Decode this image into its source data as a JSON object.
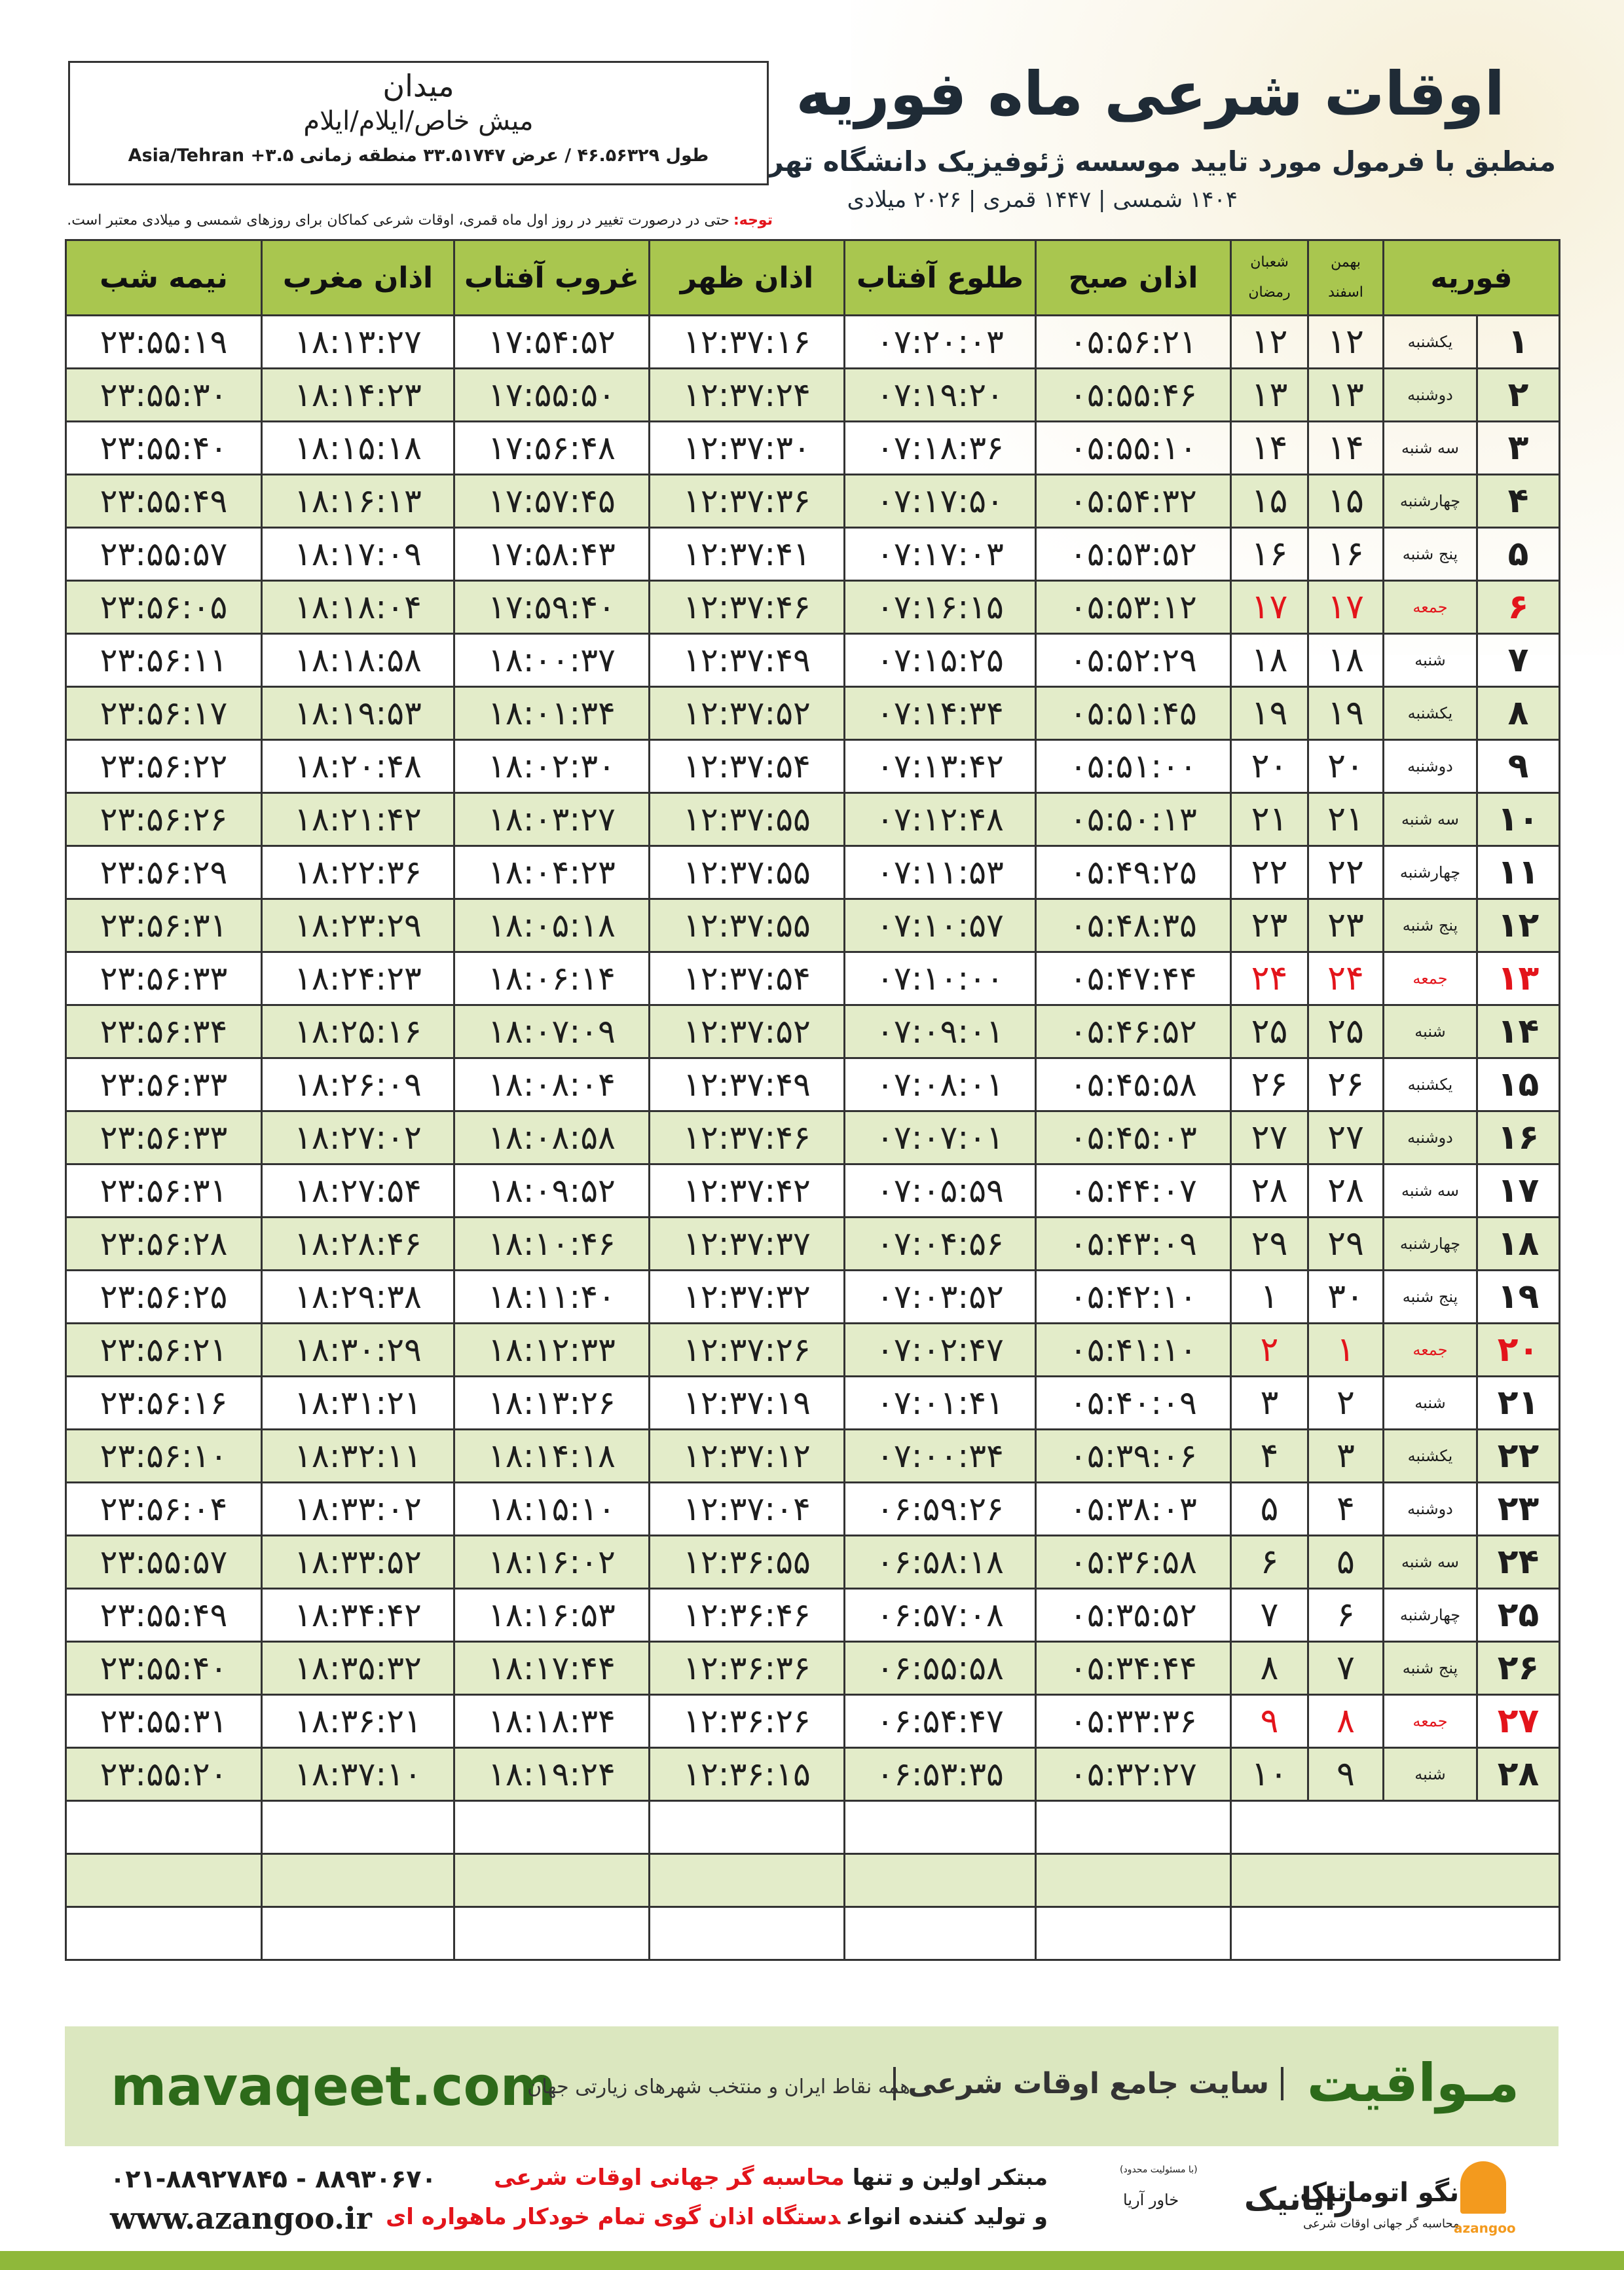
{
  "header": {
    "title": "اوقات شرعی ماه فوریه",
    "subtitle": "منطبق با فرمول مورد تایید موسسه ژئوفیزیک دانشگاه تهران",
    "dates": "۱۴۰۴ شمسی | ۱۴۴۷ قمری | ۲۰۲۶ میلادی",
    "city": "میدان",
    "location": "میش خاص/ایلام/ایلام",
    "coords": "طول ۴۶.۵۶۳۲۹ / عرض ۳۳.۵۱۷۴۷ منطقه زمانی ۳.۵+ Asia/Tehran"
  },
  "note": {
    "label": "توجه:",
    "text": "حتی در درصورت تغییر در روز اول ماه قمری، اوقات شرعی کماکان برای روزهای شمسی و میلادی معتبر است."
  },
  "table": {
    "holiday_color": "#e3141b",
    "columns": {
      "gregorian": "فوریه",
      "solar": [
        "بهمن",
        "اسفند"
      ],
      "lunar": [
        "شعبان",
        "رمضان"
      ],
      "times": [
        "اذان صبح",
        "طلوع آفتاب",
        "اذان ظهر",
        "غروب آفتاب",
        "اذان مغرب",
        "نیمه شب"
      ]
    },
    "rows": [
      {
        "cells": [
          "۱",
          "یکشنبه",
          "۱۲",
          "۱۲",
          "۰۵:۵۶:۲۱",
          "۰۷:۲۰:۰۳",
          "۱۲:۳۷:۱۶",
          "۱۷:۵۴:۵۲",
          "۱۸:۱۳:۲۷",
          "۲۳:۵۵:۱۹"
        ]
      },
      {
        "cells": [
          "۲",
          "دوشنبه",
          "۱۳",
          "۱۳",
          "۰۵:۵۵:۴۶",
          "۰۷:۱۹:۲۰",
          "۱۲:۳۷:۲۴",
          "۱۷:۵۵:۵۰",
          "۱۸:۱۴:۲۳",
          "۲۳:۵۵:۳۰"
        ]
      },
      {
        "cells": [
          "۳",
          "سه شنبه",
          "۱۴",
          "۱۴",
          "۰۵:۵۵:۱۰",
          "۰۷:۱۸:۳۶",
          "۱۲:۳۷:۳۰",
          "۱۷:۵۶:۴۸",
          "۱۸:۱۵:۱۸",
          "۲۳:۵۵:۴۰"
        ]
      },
      {
        "cells": [
          "۴",
          "چهارشنبه",
          "۱۵",
          "۱۵",
          "۰۵:۵۴:۳۲",
          "۰۷:۱۷:۵۰",
          "۱۲:۳۷:۳۶",
          "۱۷:۵۷:۴۵",
          "۱۸:۱۶:۱۳",
          "۲۳:۵۵:۴۹"
        ]
      },
      {
        "cells": [
          "۵",
          "پنج شنبه",
          "۱۶",
          "۱۶",
          "۰۵:۵۳:۵۲",
          "۰۷:۱۷:۰۳",
          "۱۲:۳۷:۴۱",
          "۱۷:۵۸:۴۳",
          "۱۸:۱۷:۰۹",
          "۲۳:۵۵:۵۷"
        ]
      },
      {
        "cells": [
          "۶",
          "جمعه",
          "۱۷",
          "۱۷",
          "۰۵:۵۳:۱۲",
          "۰۷:۱۶:۱۵",
          "۱۲:۳۷:۴۶",
          "۱۷:۵۹:۴۰",
          "۱۸:۱۸:۰۴",
          "۲۳:۵۶:۰۵"
        ],
        "holiday": true
      },
      {
        "cells": [
          "۷",
          "شنبه",
          "۱۸",
          "۱۸",
          "۰۵:۵۲:۲۹",
          "۰۷:۱۵:۲۵",
          "۱۲:۳۷:۴۹",
          "۱۸:۰۰:۳۷",
          "۱۸:۱۸:۵۸",
          "۲۳:۵۶:۱۱"
        ]
      },
      {
        "cells": [
          "۸",
          "یکشنبه",
          "۱۹",
          "۱۹",
          "۰۵:۵۱:۴۵",
          "۰۷:۱۴:۳۴",
          "۱۲:۳۷:۵۲",
          "۱۸:۰۱:۳۴",
          "۱۸:۱۹:۵۳",
          "۲۳:۵۶:۱۷"
        ]
      },
      {
        "cells": [
          "۹",
          "دوشنبه",
          "۲۰",
          "۲۰",
          "۰۵:۵۱:۰۰",
          "۰۷:۱۳:۴۲",
          "۱۲:۳۷:۵۴",
          "۱۸:۰۲:۳۰",
          "۱۸:۲۰:۴۸",
          "۲۳:۵۶:۲۲"
        ]
      },
      {
        "cells": [
          "۱۰",
          "سه شنبه",
          "۲۱",
          "۲۱",
          "۰۵:۵۰:۱۳",
          "۰۷:۱۲:۴۸",
          "۱۲:۳۷:۵۵",
          "۱۸:۰۳:۲۷",
          "۱۸:۲۱:۴۲",
          "۲۳:۵۶:۲۶"
        ]
      },
      {
        "cells": [
          "۱۱",
          "چهارشنبه",
          "۲۲",
          "۲۲",
          "۰۵:۴۹:۲۵",
          "۰۷:۱۱:۵۳",
          "۱۲:۳۷:۵۵",
          "۱۸:۰۴:۲۳",
          "۱۸:۲۲:۳۶",
          "۲۳:۵۶:۲۹"
        ]
      },
      {
        "cells": [
          "۱۲",
          "پنج شنبه",
          "۲۳",
          "۲۳",
          "۰۵:۴۸:۳۵",
          "۰۷:۱۰:۵۷",
          "۱۲:۳۷:۵۵",
          "۱۸:۰۵:۱۸",
          "۱۸:۲۳:۲۹",
          "۲۳:۵۶:۳۱"
        ]
      },
      {
        "cells": [
          "۱۳",
          "جمعه",
          "۲۴",
          "۲۴",
          "۰۵:۴۷:۴۴",
          "۰۷:۱۰:۰۰",
          "۱۲:۳۷:۵۴",
          "۱۸:۰۶:۱۴",
          "۱۸:۲۴:۲۳",
          "۲۳:۵۶:۳۳"
        ],
        "holiday": true
      },
      {
        "cells": [
          "۱۴",
          "شنبه",
          "۲۵",
          "۲۵",
          "۰۵:۴۶:۵۲",
          "۰۷:۰۹:۰۱",
          "۱۲:۳۷:۵۲",
          "۱۸:۰۷:۰۹",
          "۱۸:۲۵:۱۶",
          "۲۳:۵۶:۳۴"
        ]
      },
      {
        "cells": [
          "۱۵",
          "یکشنبه",
          "۲۶",
          "۲۶",
          "۰۵:۴۵:۵۸",
          "۰۷:۰۸:۰۱",
          "۱۲:۳۷:۴۹",
          "۱۸:۰۸:۰۴",
          "۱۸:۲۶:۰۹",
          "۲۳:۵۶:۳۳"
        ]
      },
      {
        "cells": [
          "۱۶",
          "دوشنبه",
          "۲۷",
          "۲۷",
          "۰۵:۴۵:۰۳",
          "۰۷:۰۷:۰۱",
          "۱۲:۳۷:۴۶",
          "۱۸:۰۸:۵۸",
          "۱۸:۲۷:۰۲",
          "۲۳:۵۶:۳۳"
        ]
      },
      {
        "cells": [
          "۱۷",
          "سه شنبه",
          "۲۸",
          "۲۸",
          "۰۵:۴۴:۰۷",
          "۰۷:۰۵:۵۹",
          "۱۲:۳۷:۴۲",
          "۱۸:۰۹:۵۲",
          "۱۸:۲۷:۵۴",
          "۲۳:۵۶:۳۱"
        ]
      },
      {
        "cells": [
          "۱۸",
          "چهارشنبه",
          "۲۹",
          "۲۹",
          "۰۵:۴۳:۰۹",
          "۰۷:۰۴:۵۶",
          "۱۲:۳۷:۳۷",
          "۱۸:۱۰:۴۶",
          "۱۸:۲۸:۴۶",
          "۲۳:۵۶:۲۸"
        ]
      },
      {
        "cells": [
          "۱۹",
          "پنج شنبه",
          "۳۰",
          "۱",
          "۰۵:۴۲:۱۰",
          "۰۷:۰۳:۵۲",
          "۱۲:۳۷:۳۲",
          "۱۸:۱۱:۴۰",
          "۱۸:۲۹:۳۸",
          "۲۳:۵۶:۲۵"
        ]
      },
      {
        "cells": [
          "۲۰",
          "جمعه",
          "۱",
          "۲",
          "۰۵:۴۱:۱۰",
          "۰۷:۰۲:۴۷",
          "۱۲:۳۷:۲۶",
          "۱۸:۱۲:۳۳",
          "۱۸:۳۰:۲۹",
          "۲۳:۵۶:۲۱"
        ],
        "holiday": true
      },
      {
        "cells": [
          "۲۱",
          "شنبه",
          "۲",
          "۳",
          "۰۵:۴۰:۰۹",
          "۰۷:۰۱:۴۱",
          "۱۲:۳۷:۱۹",
          "۱۸:۱۳:۲۶",
          "۱۸:۳۱:۲۱",
          "۲۳:۵۶:۱۶"
        ]
      },
      {
        "cells": [
          "۲۲",
          "یکشنبه",
          "۳",
          "۴",
          "۰۵:۳۹:۰۶",
          "۰۷:۰۰:۳۴",
          "۱۲:۳۷:۱۲",
          "۱۸:۱۴:۱۸",
          "۱۸:۳۲:۱۱",
          "۲۳:۵۶:۱۰"
        ]
      },
      {
        "cells": [
          "۲۳",
          "دوشنبه",
          "۴",
          "۵",
          "۰۵:۳۸:۰۳",
          "۰۶:۵۹:۲۶",
          "۱۲:۳۷:۰۴",
          "۱۸:۱۵:۱۰",
          "۱۸:۳۳:۰۲",
          "۲۳:۵۶:۰۴"
        ]
      },
      {
        "cells": [
          "۲۴",
          "سه شنبه",
          "۵",
          "۶",
          "۰۵:۳۶:۵۸",
          "۰۶:۵۸:۱۸",
          "۱۲:۳۶:۵۵",
          "۱۸:۱۶:۰۲",
          "۱۸:۳۳:۵۲",
          "۲۳:۵۵:۵۷"
        ]
      },
      {
        "cells": [
          "۲۵",
          "چهارشنبه",
          "۶",
          "۷",
          "۰۵:۳۵:۵۲",
          "۰۶:۵۷:۰۸",
          "۱۲:۳۶:۴۶",
          "۱۸:۱۶:۵۳",
          "۱۸:۳۴:۴۲",
          "۲۳:۵۵:۴۹"
        ]
      },
      {
        "cells": [
          "۲۶",
          "پنج شنبه",
          "۷",
          "۸",
          "۰۵:۳۴:۴۴",
          "۰۶:۵۵:۵۸",
          "۱۲:۳۶:۳۶",
          "۱۸:۱۷:۴۴",
          "۱۸:۳۵:۳۲",
          "۲۳:۵۵:۴۰"
        ]
      },
      {
        "cells": [
          "۲۷",
          "جمعه",
          "۸",
          "۹",
          "۰۵:۳۳:۳۶",
          "۰۶:۵۴:۴۷",
          "۱۲:۳۶:۲۶",
          "۱۸:۱۸:۳۴",
          "۱۸:۳۶:۲۱",
          "۲۳:۵۵:۳۱"
        ],
        "holiday": true
      },
      {
        "cells": [
          "۲۸",
          "شنبه",
          "۹",
          "۱۰",
          "۰۵:۳۲:۲۷",
          "۰۶:۵۳:۳۵",
          "۱۲:۳۶:۱۵",
          "۱۸:۱۹:۲۴",
          "۱۸:۳۷:۱۰",
          "۲۳:۵۵:۲۰"
        ]
      }
    ]
  },
  "footer": {
    "website": "mavaqeet.com",
    "brand": "مـواقیت",
    "slogan": "سایت جامع اوقات شرعی",
    "coverage": "همه نقاط ایران و منتخب شهرهای زیارتی جهان"
  },
  "bottom": {
    "phones": "۰۲۱-۸۸۹۲۷۸۴۵ - ۸۸۹۳۰۶۷۰",
    "url": "www.azangoo.ir",
    "line1": [
      "مبتکر اولین و تنها",
      "محاسبه گر جهانی اوقات شرعی"
    ],
    "line2": [
      "و تولید کننده انواع",
      "دستگاه اذان گوی تمام خودکار ماهواره ای"
    ],
    "rayanik": "رایانیک",
    "rayanik_sub": "خاور آریا",
    "rayanik_note": "(با مسئولیت محدود)",
    "azangoo_logo": "اذانگو اتوماتیک",
    "azangoo_tagline": "محاسبه گر جهانی اوقات شرعی",
    "azangoo_latin": "azangoo"
  }
}
